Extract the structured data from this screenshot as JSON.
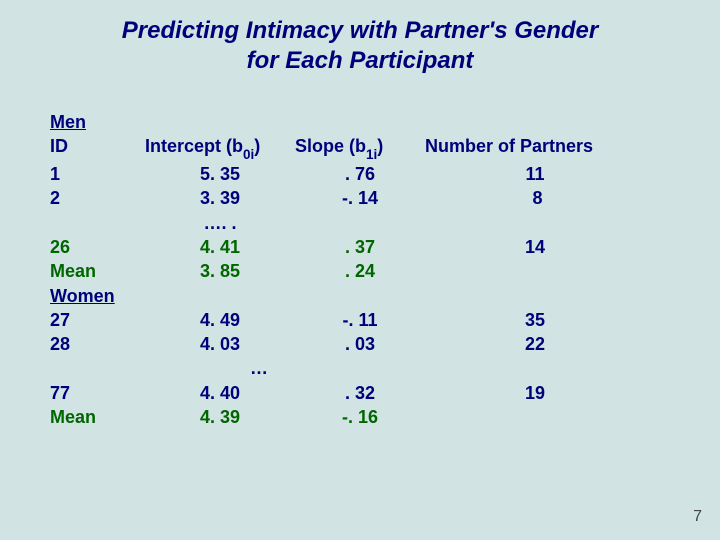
{
  "title_line1": "Predicting Intimacy with Partner's Gender",
  "title_line2": "for Each Participant",
  "header": {
    "id": "ID",
    "intercept_pre": "Intercept (b",
    "intercept_sub": "0i",
    "intercept_post": ")",
    "slope_pre": "Slope (b",
    "slope_sub": "1i",
    "slope_post": ")",
    "partners": "Number of Partners"
  },
  "sections": {
    "men_label": "Men",
    "women_label": "Women"
  },
  "men_rows": [
    {
      "id": "1",
      "intercept": "5. 35",
      "slope": ". 76",
      "n": "11"
    },
    {
      "id": "2",
      "intercept": "3. 39",
      "slope": "-. 14",
      "n": " 8"
    }
  ],
  "men_ellipsis_intercept": "…. .",
  "men_last": {
    "id": "26",
    "intercept": "4. 41",
    "slope": ". 37",
    "n": "14"
  },
  "men_mean": {
    "id": "Mean",
    "intercept": "3. 85",
    "slope": ". 24",
    "n": ""
  },
  "women_rows": [
    {
      "id": "27",
      "intercept": "4. 49",
      "slope": "-. 11",
      "n": "35"
    },
    {
      "id": "28",
      "intercept": "4. 03",
      "slope": ". 03",
      "n": "22"
    }
  ],
  "women_ellipsis": "…",
  "women_last": {
    "id": "77",
    "intercept": "4. 40",
    "slope": ". 32",
    "n": "19"
  },
  "women_mean": {
    "id": "Mean",
    "intercept": "4. 39",
    "slope": "-. 16",
    "n": ""
  },
  "pagenum": "7"
}
